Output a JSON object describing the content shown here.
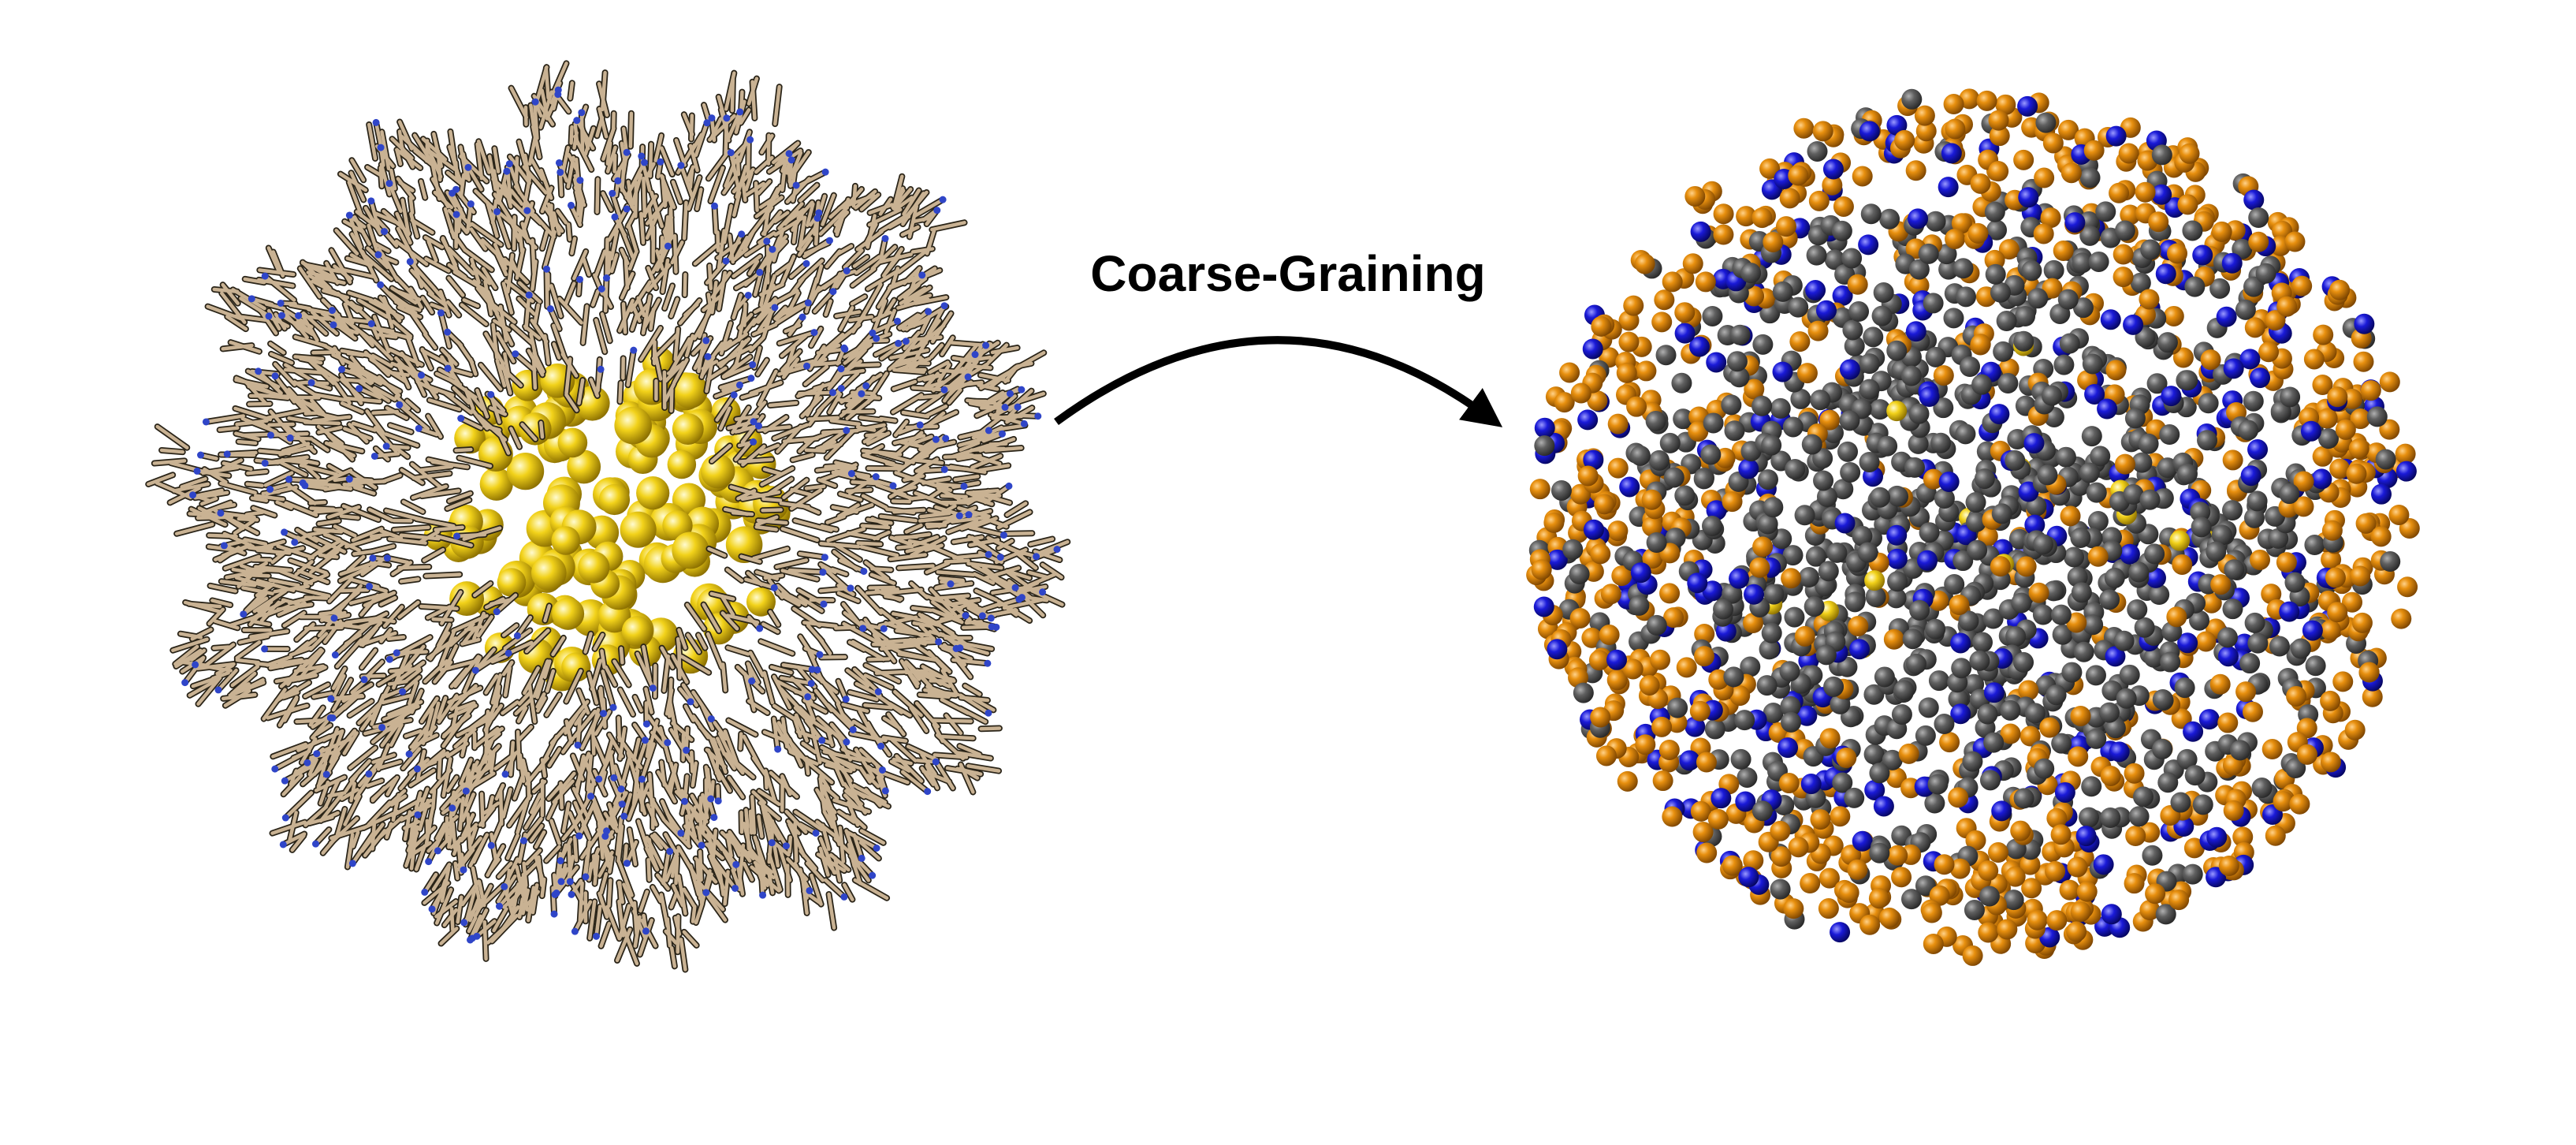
{
  "label": "Coarse-Graining"
}
